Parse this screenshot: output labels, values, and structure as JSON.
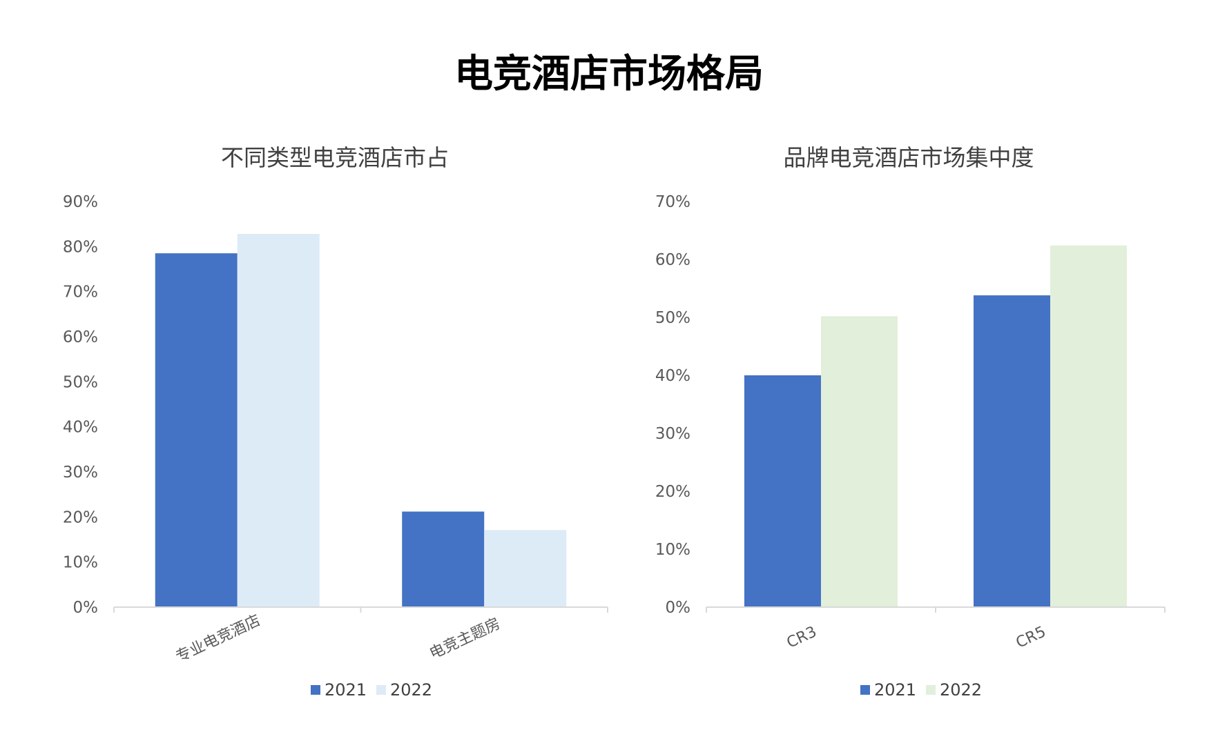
{
  "page_title": "电竞酒店市场格局",
  "chart_data": [
    {
      "type": "bar",
      "title": "不同类型电竞酒店市占",
      "categories": [
        "专业电竞酒店",
        "电竞主题房"
      ],
      "series": [
        {
          "name": "2021",
          "values": [
            0.785,
            0.212
          ],
          "color": "#4472C4"
        },
        {
          "name": "2022",
          "values": [
            0.828,
            0.171
          ],
          "color": "#DDEBF7"
        }
      ],
      "ylim": [
        0,
        0.9
      ],
      "yticks": [
        "0%",
        "10%",
        "20%",
        "30%",
        "40%",
        "50%",
        "60%",
        "70%",
        "80%",
        "90%"
      ],
      "legend": "bottom",
      "grid": false
    },
    {
      "type": "bar",
      "title": "品牌电竞酒店市场集中度",
      "categories": [
        "CR3",
        "CR5"
      ],
      "series": [
        {
          "name": "2021",
          "values": [
            0.4,
            0.538
          ],
          "color": "#4472C4"
        },
        {
          "name": "2022",
          "values": [
            0.502,
            0.624
          ],
          "color": "#E2EFDA"
        }
      ],
      "ylim": [
        0,
        0.7
      ],
      "yticks": [
        "0%",
        "10%",
        "20%",
        "30%",
        "40%",
        "50%",
        "60%",
        "70%"
      ],
      "legend": "bottom",
      "grid": false
    }
  ]
}
